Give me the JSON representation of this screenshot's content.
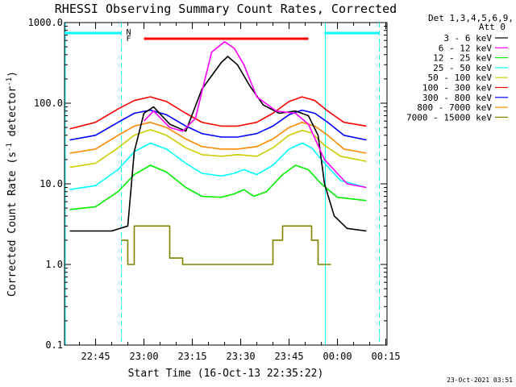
{
  "chart_data": {
    "type": "line",
    "title": "RHESSI Observing Summary Count Rates, Corrected",
    "xlabel": "Start Time (16-Oct-13 22:35:22)",
    "ylabel": "Corrected Count Rate (s",
    "ylabel_sup": "-1",
    "ylabel_mid": " detector",
    "ylabel_end": ")",
    "y_scale": "log",
    "ylim": [
      0.1,
      1000
    ],
    "y_ticks": [
      {
        "value": 0.1,
        "label": "0.1"
      },
      {
        "value": 1,
        "label": "1.0"
      },
      {
        "value": 10,
        "label": "10.0"
      },
      {
        "value": 100,
        "label": "100.0"
      },
      {
        "value": 1000,
        "label": "1000.0"
      }
    ],
    "x_ticks": [
      {
        "value": "22:45",
        "label": "22:45"
      },
      {
        "value": "23:00",
        "label": "23:00"
      },
      {
        "value": "23:15",
        "label": "23:15"
      },
      {
        "value": "23:30",
        "label": "23:30"
      },
      {
        "value": "23:45",
        "label": "23:45"
      },
      {
        "value": "00:00",
        "label": "00:00"
      },
      {
        "value": "00:15",
        "label": "00:15"
      }
    ],
    "legend_title_1": "Det 1,3,4,5,6,9,",
    "legend_title_2": "Att 0",
    "legend_position": "right",
    "series": [
      {
        "name": "3 - 6 keV",
        "color": "#000000",
        "points": [
          [
            "22:37",
            2.6
          ],
          [
            "22:50",
            2.6
          ],
          [
            "22:55",
            3
          ],
          [
            "22:57",
            25
          ],
          [
            "23:00",
            75
          ],
          [
            "23:03",
            90
          ],
          [
            "23:08",
            55
          ],
          [
            "23:13",
            45
          ],
          [
            "23:18",
            150
          ],
          [
            "23:24",
            320
          ],
          [
            "23:26",
            380
          ],
          [
            "23:29",
            300
          ],
          [
            "23:33",
            160
          ],
          [
            "23:37",
            95
          ],
          [
            "23:42",
            75
          ],
          [
            "23:47",
            80
          ],
          [
            "23:51",
            70
          ],
          [
            "23:54",
            40
          ],
          [
            "23:56",
            10
          ],
          [
            "23:59",
            4
          ],
          [
            "00:03",
            2.8
          ],
          [
            "00:09",
            2.6
          ]
        ]
      },
      {
        "name": "6 - 12 keV",
        "color": "#ff00ff",
        "points": [
          [
            "23:00",
            60
          ],
          [
            "23:03",
            80
          ],
          [
            "23:08",
            50
          ],
          [
            "23:12",
            45
          ],
          [
            "23:16",
            65
          ],
          [
            "23:18",
            140
          ],
          [
            "23:21",
            430
          ],
          [
            "23:25",
            580
          ],
          [
            "23:28",
            480
          ],
          [
            "23:31",
            300
          ],
          [
            "23:35",
            120
          ],
          [
            "23:41",
            80
          ],
          [
            "23:47",
            75
          ],
          [
            "23:51",
            55
          ],
          [
            "23:56",
            20
          ],
          [
            "00:03",
            10
          ],
          [
            "00:09",
            9
          ]
        ]
      },
      {
        "name": "12 - 25 keV",
        "color": "#00ee00",
        "points": [
          [
            "22:37",
            4.8
          ],
          [
            "22:45",
            5.2
          ],
          [
            "22:52",
            8
          ],
          [
            "22:57",
            13
          ],
          [
            "23:02",
            17
          ],
          [
            "23:07",
            14
          ],
          [
            "23:13",
            9
          ],
          [
            "23:18",
            7
          ],
          [
            "23:24",
            6.8
          ],
          [
            "23:28",
            7.5
          ],
          [
            "23:31",
            8.5
          ],
          [
            "23:34",
            7
          ],
          [
            "23:38",
            8
          ],
          [
            "23:43",
            13
          ],
          [
            "23:47",
            17
          ],
          [
            "23:51",
            15
          ],
          [
            "23:55",
            10
          ],
          [
            "00:00",
            6.8
          ],
          [
            "00:09",
            6.2
          ]
        ]
      },
      {
        "name": "25 - 50 keV",
        "color": "#00ffff",
        "points": [
          [
            "22:37",
            8.5
          ],
          [
            "22:45",
            9.5
          ],
          [
            "22:52",
            15
          ],
          [
            "22:57",
            25
          ],
          [
            "23:02",
            32
          ],
          [
            "23:07",
            27
          ],
          [
            "23:13",
            18
          ],
          [
            "23:18",
            13.5
          ],
          [
            "23:24",
            12.5
          ],
          [
            "23:28",
            13.5
          ],
          [
            "23:31",
            15
          ],
          [
            "23:35",
            13
          ],
          [
            "23:40",
            17
          ],
          [
            "23:45",
            27
          ],
          [
            "23:49",
            32
          ],
          [
            "23:52",
            28
          ],
          [
            "23:56",
            18
          ],
          [
            "00:01",
            11
          ],
          [
            "00:09",
            9
          ]
        ]
      },
      {
        "name": "50 - 100 keV",
        "color": "#cccc00",
        "points": [
          [
            "22:37",
            16
          ],
          [
            "22:45",
            18
          ],
          [
            "22:52",
            28
          ],
          [
            "22:57",
            40
          ],
          [
            "23:02",
            47
          ],
          [
            "23:07",
            40
          ],
          [
            "23:13",
            28
          ],
          [
            "23:18",
            23
          ],
          [
            "23:24",
            22
          ],
          [
            "23:29",
            23
          ],
          [
            "23:35",
            22
          ],
          [
            "23:40",
            28
          ],
          [
            "23:45",
            40
          ],
          [
            "23:49",
            46
          ],
          [
            "23:52",
            43
          ],
          [
            "23:56",
            30
          ],
          [
            "00:01",
            22
          ],
          [
            "00:09",
            19
          ]
        ]
      },
      {
        "name": "100 - 300 keV",
        "color": "#ff0000",
        "points": [
          [
            "22:37",
            48
          ],
          [
            "22:45",
            58
          ],
          [
            "22:52",
            85
          ],
          [
            "22:57",
            108
          ],
          [
            "23:02",
            120
          ],
          [
            "23:07",
            105
          ],
          [
            "23:13",
            75
          ],
          [
            "23:18",
            58
          ],
          [
            "23:24",
            52
          ],
          [
            "23:29",
            52
          ],
          [
            "23:35",
            58
          ],
          [
            "23:40",
            75
          ],
          [
            "23:45",
            105
          ],
          [
            "23:49",
            120
          ],
          [
            "23:53",
            108
          ],
          [
            "23:57",
            80
          ],
          [
            "00:02",
            58
          ],
          [
            "00:09",
            52
          ]
        ]
      },
      {
        "name": "300 - 800 keV",
        "color": "#0000ff",
        "points": [
          [
            "22:37",
            35
          ],
          [
            "22:45",
            40
          ],
          [
            "22:52",
            58
          ],
          [
            "22:57",
            75
          ],
          [
            "23:02",
            82
          ],
          [
            "23:07",
            72
          ],
          [
            "23:13",
            52
          ],
          [
            "23:18",
            42
          ],
          [
            "23:24",
            38
          ],
          [
            "23:29",
            38
          ],
          [
            "23:35",
            42
          ],
          [
            "23:40",
            52
          ],
          [
            "23:45",
            72
          ],
          [
            "23:49",
            82
          ],
          [
            "23:53",
            75
          ],
          [
            "23:57",
            58
          ],
          [
            "00:02",
            40
          ],
          [
            "00:09",
            35
          ]
        ]
      },
      {
        "name": "800 - 7000 keV",
        "color": "#ff8800",
        "points": [
          [
            "22:37",
            24
          ],
          [
            "22:45",
            27
          ],
          [
            "22:52",
            40
          ],
          [
            "22:57",
            52
          ],
          [
            "23:02",
            58
          ],
          [
            "23:07",
            50
          ],
          [
            "23:13",
            36
          ],
          [
            "23:18",
            29
          ],
          [
            "23:24",
            27
          ],
          [
            "23:29",
            27
          ],
          [
            "23:35",
            29
          ],
          [
            "23:40",
            36
          ],
          [
            "23:45",
            50
          ],
          [
            "23:49",
            58
          ],
          [
            "23:53",
            52
          ],
          [
            "23:57",
            40
          ],
          [
            "00:02",
            27
          ],
          [
            "00:09",
            24
          ]
        ]
      },
      {
        "name": "7000 - 15000 keV",
        "color": "#808000",
        "points": [
          [
            "22:53",
            2
          ],
          [
            "22:55",
            2
          ],
          [
            "22:55",
            1
          ],
          [
            "22:57",
            1
          ],
          [
            "22:57",
            3
          ],
          [
            "23:08",
            3
          ],
          [
            "23:08",
            1.2
          ],
          [
            "23:12",
            1.2
          ],
          [
            "23:12",
            1
          ],
          [
            "23:40",
            1
          ],
          [
            "23:40",
            2
          ],
          [
            "23:43",
            2
          ],
          [
            "23:43",
            3
          ],
          [
            "23:52",
            3
          ],
          [
            "23:52",
            2
          ],
          [
            "23:54",
            2
          ],
          [
            "23:54",
            1
          ],
          [
            "23:58",
            1
          ]
        ]
      }
    ],
    "attenuator_markers": {
      "color": "#00ffff",
      "left_label": "N",
      "right_label": "F"
    },
    "flare_marker": {
      "color": "#ff0000",
      "start": "23:00",
      "end": "23:51"
    },
    "night_intervals": [
      [
        "22:35",
        "22:53"
      ],
      [
        "23:56",
        "00:13"
      ]
    ]
  },
  "footer_date": "23-Oct-2021 03:51"
}
